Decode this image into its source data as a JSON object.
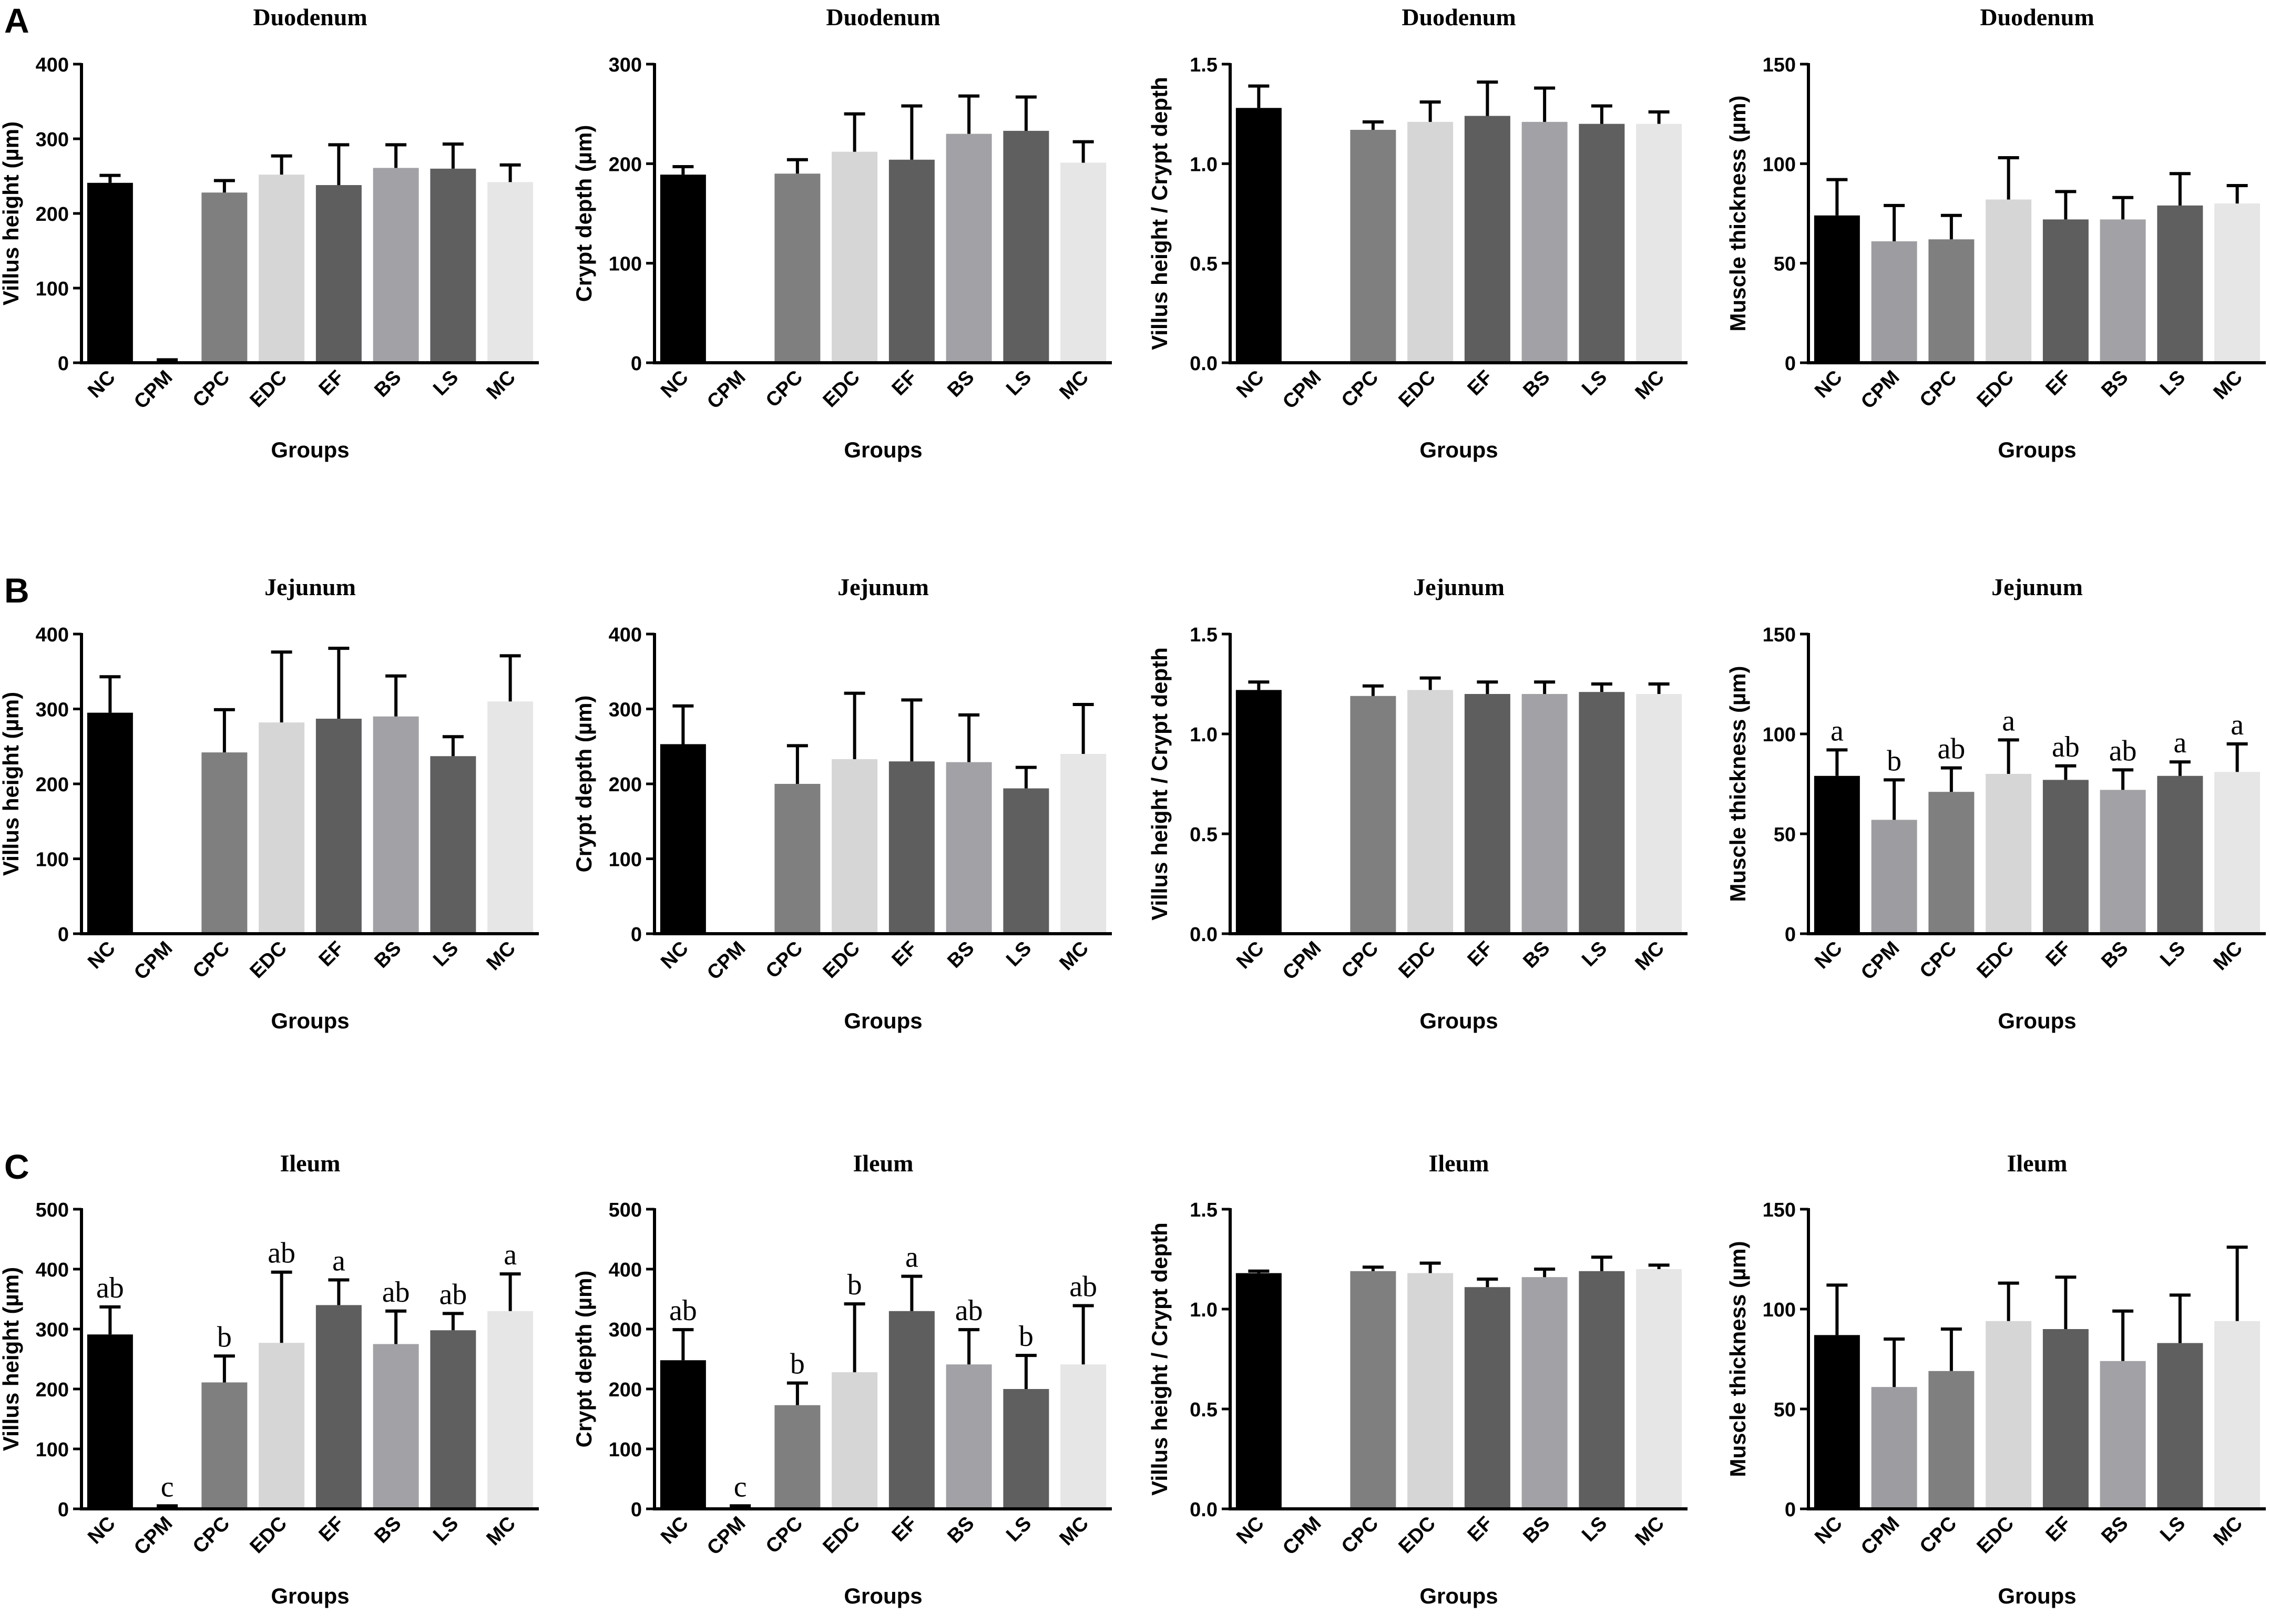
{
  "panel_letters": [
    "A",
    "B",
    "C"
  ],
  "chart_data": [
    {
      "type": "bar",
      "panel": "A",
      "title": "Duodenum",
      "xlabel": "Groups",
      "ylabel": "Villus height (µm)",
      "ylim": [
        0,
        400
      ],
      "yticks": [
        0,
        100,
        200,
        300,
        400
      ],
      "tick_labels": [
        "0",
        "100",
        "200",
        "300",
        "400"
      ],
      "categories": [
        "NC",
        "CPM",
        "CPC",
        "EDC",
        "EF",
        "BS",
        "LS",
        "MC"
      ],
      "colors": [
        "#000000",
        "#9d9da1",
        "#7f7f7f",
        "#d6d6d6",
        "#5e5e5e",
        "#a2a2a6",
        "#5f5f5f",
        "#e6e6e6"
      ],
      "values": [
        241,
        2,
        228,
        252,
        238,
        261,
        260,
        242
      ],
      "errors": [
        10,
        2,
        16,
        25,
        54,
        31,
        33,
        23
      ],
      "labels": []
    },
    {
      "type": "bar",
      "panel": "A",
      "title": "Duodenum",
      "xlabel": "Groups",
      "ylabel": "Crypt depth (µm)",
      "ylim": [
        0,
        300
      ],
      "yticks": [
        0,
        100,
        200,
        300
      ],
      "tick_labels": [
        "0",
        "100",
        "200",
        "300"
      ],
      "categories": [
        "NC",
        "CPM",
        "CPC",
        "EDC",
        "EF",
        "BS",
        "LS",
        "MC"
      ],
      "colors": [
        "#000000",
        "#9d9da1",
        "#7f7f7f",
        "#d6d6d6",
        "#5e5e5e",
        "#a2a2a6",
        "#5f5f5f",
        "#e6e6e6"
      ],
      "values": [
        189,
        1,
        190,
        212,
        204,
        230,
        233,
        201
      ],
      "errors": [
        8,
        0,
        14,
        38,
        54,
        38,
        34,
        21
      ],
      "labels": []
    },
    {
      "type": "bar",
      "panel": "A",
      "title": "Duodenum",
      "xlabel": "Groups",
      "ylabel": "Villus height / Crypt depth",
      "ylim": [
        0,
        1.5
      ],
      "yticks": [
        0,
        0.5,
        1.0,
        1.5
      ],
      "tick_labels": [
        "0.0",
        "0.5",
        "1.0",
        "1.5"
      ],
      "categories": [
        "NC",
        "CPM",
        "CPC",
        "EDC",
        "EF",
        "BS",
        "LS",
        "MC"
      ],
      "colors": [
        "#000000",
        "#9d9da1",
        "#7f7f7f",
        "#d6d6d6",
        "#5e5e5e",
        "#a2a2a6",
        "#5f5f5f",
        "#e6e6e6"
      ],
      "values": [
        1.28,
        0,
        1.17,
        1.21,
        1.24,
        1.21,
        1.2,
        1.2
      ],
      "errors": [
        0.11,
        0,
        0.04,
        0.1,
        0.17,
        0.17,
        0.09,
        0.06
      ],
      "labels": []
    },
    {
      "type": "bar",
      "panel": "A",
      "title": "Duodenum",
      "xlabel": "Groups",
      "ylabel": "Muscle thickness (µm)",
      "ylim": [
        0,
        150
      ],
      "yticks": [
        0,
        50,
        100,
        150
      ],
      "tick_labels": [
        "0",
        "50",
        "100",
        "150"
      ],
      "categories": [
        "NC",
        "CPM",
        "CPC",
        "EDC",
        "EF",
        "BS",
        "LS",
        "MC"
      ],
      "colors": [
        "#000000",
        "#9d9da1",
        "#7f7f7f",
        "#d6d6d6",
        "#5e5e5e",
        "#a2a2a6",
        "#5f5f5f",
        "#e6e6e6"
      ],
      "values": [
        74,
        61,
        62,
        82,
        72,
        72,
        79,
        80
      ],
      "errors": [
        18,
        18,
        12,
        21,
        14,
        11,
        16,
        9
      ],
      "labels": []
    },
    {
      "type": "bar",
      "panel": "B",
      "title": "Jejunum",
      "xlabel": "Groups",
      "ylabel": "Villus height (µm)",
      "ylim": [
        0,
        400
      ],
      "yticks": [
        0,
        100,
        200,
        300,
        400
      ],
      "tick_labels": [
        "0",
        "100",
        "200",
        "300",
        "400"
      ],
      "categories": [
        "NC",
        "CPM",
        "CPC",
        "EDC",
        "EF",
        "BS",
        "LS",
        "MC"
      ],
      "colors": [
        "#000000",
        "#9d9da1",
        "#7f7f7f",
        "#d6d6d6",
        "#5e5e5e",
        "#a2a2a6",
        "#5f5f5f",
        "#e6e6e6"
      ],
      "values": [
        295,
        1,
        242,
        282,
        287,
        290,
        237,
        310
      ],
      "errors": [
        48,
        0,
        57,
        94,
        94,
        54,
        26,
        61
      ],
      "labels": []
    },
    {
      "type": "bar",
      "panel": "B",
      "title": "Jejunum",
      "xlabel": "Groups",
      "ylabel": "Crypt depth (µm)",
      "ylim": [
        0,
        400
      ],
      "yticks": [
        0,
        100,
        200,
        300,
        400
      ],
      "tick_labels": [
        "0",
        "100",
        "200",
        "300",
        "400"
      ],
      "categories": [
        "NC",
        "CPM",
        "CPC",
        "EDC",
        "EF",
        "BS",
        "LS",
        "MC"
      ],
      "colors": [
        "#000000",
        "#9d9da1",
        "#7f7f7f",
        "#d6d6d6",
        "#5e5e5e",
        "#a2a2a6",
        "#5f5f5f",
        "#e6e6e6"
      ],
      "values": [
        253,
        1,
        200,
        233,
        230,
        229,
        194,
        240
      ],
      "errors": [
        51,
        0,
        51,
        88,
        82,
        63,
        28,
        66
      ],
      "labels": []
    },
    {
      "type": "bar",
      "panel": "B",
      "title": "Jejunum",
      "xlabel": "Groups",
      "ylabel": "Villus height / Crypt depth",
      "ylim": [
        0,
        1.5
      ],
      "yticks": [
        0,
        0.5,
        1.0,
        1.5
      ],
      "tick_labels": [
        "0.0",
        "0.5",
        "1.0",
        "1.5"
      ],
      "categories": [
        "NC",
        "CPM",
        "CPC",
        "EDC",
        "EF",
        "BS",
        "LS",
        "MC"
      ],
      "colors": [
        "#000000",
        "#9d9da1",
        "#7f7f7f",
        "#d6d6d6",
        "#5e5e5e",
        "#a2a2a6",
        "#5f5f5f",
        "#e6e6e6"
      ],
      "values": [
        1.22,
        0,
        1.19,
        1.22,
        1.2,
        1.2,
        1.21,
        1.2
      ],
      "errors": [
        0.04,
        0,
        0.05,
        0.06,
        0.06,
        0.06,
        0.04,
        0.05
      ],
      "labels": []
    },
    {
      "type": "bar",
      "panel": "B",
      "title": "Jejunum",
      "xlabel": "Groups",
      "ylabel": "Muscle thickness (µm)",
      "ylim": [
        0,
        150
      ],
      "yticks": [
        0,
        50,
        100,
        150
      ],
      "tick_labels": [
        "0",
        "50",
        "100",
        "150"
      ],
      "categories": [
        "NC",
        "CPM",
        "CPC",
        "EDC",
        "EF",
        "BS",
        "LS",
        "MC"
      ],
      "colors": [
        "#000000",
        "#9d9da1",
        "#7f7f7f",
        "#d6d6d6",
        "#5e5e5e",
        "#a2a2a6",
        "#5f5f5f",
        "#e6e6e6"
      ],
      "values": [
        79,
        57,
        71,
        80,
        77,
        72,
        79,
        81
      ],
      "errors": [
        13,
        20,
        12,
        17,
        7,
        10,
        7,
        14
      ],
      "labels": [
        "a",
        "b",
        "ab",
        "a",
        "ab",
        "ab",
        "a",
        "a"
      ]
    },
    {
      "type": "bar",
      "panel": "C",
      "title": "Ileum",
      "xlabel": "Groups",
      "ylabel": "Villus height (µm)",
      "ylim": [
        0,
        500
      ],
      "yticks": [
        0,
        100,
        200,
        300,
        400,
        500
      ],
      "tick_labels": [
        "0",
        "100",
        "200",
        "300",
        "400",
        "500"
      ],
      "categories": [
        "NC",
        "CPM",
        "CPC",
        "EDC",
        "EF",
        "BS",
        "LS",
        "MC"
      ],
      "colors": [
        "#000000",
        "#9d9da1",
        "#7f7f7f",
        "#d6d6d6",
        "#5e5e5e",
        "#a2a2a6",
        "#5f5f5f",
        "#e6e6e6"
      ],
      "values": [
        291,
        2,
        211,
        277,
        340,
        275,
        298,
        330
      ],
      "errors": [
        46,
        3,
        44,
        118,
        42,
        55,
        28,
        62
      ],
      "labels": [
        "ab",
        "c",
        "b",
        "ab",
        "a",
        "ab",
        "ab",
        "a"
      ]
    },
    {
      "type": "bar",
      "panel": "C",
      "title": "Ileum",
      "xlabel": "Groups",
      "ylabel": "Crypt depth (µm)",
      "ylim": [
        0,
        500
      ],
      "yticks": [
        0,
        100,
        200,
        300,
        400,
        500
      ],
      "tick_labels": [
        "0",
        "100",
        "200",
        "300",
        "400",
        "500"
      ],
      "categories": [
        "NC",
        "CPM",
        "CPC",
        "EDC",
        "EF",
        "BS",
        "LS",
        "MC"
      ],
      "colors": [
        "#000000",
        "#9d9da1",
        "#7f7f7f",
        "#d6d6d6",
        "#5e5e5e",
        "#a2a2a6",
        "#5f5f5f",
        "#e6e6e6"
      ],
      "values": [
        248,
        2,
        173,
        228,
        330,
        241,
        200,
        241
      ],
      "errors": [
        51,
        3,
        37,
        114,
        58,
        58,
        56,
        98
      ],
      "labels": [
        "ab",
        "c",
        "b",
        "b",
        "a",
        "ab",
        "b",
        "ab"
      ]
    },
    {
      "type": "bar",
      "panel": "C",
      "title": "Ileum",
      "xlabel": "Groups",
      "ylabel": "Villus height / Crypt depth",
      "ylim": [
        0,
        1.5
      ],
      "yticks": [
        0,
        0.5,
        1.0,
        1.5
      ],
      "tick_labels": [
        "0.0",
        "0.5",
        "1.0",
        "1.5"
      ],
      "categories": [
        "NC",
        "CPM",
        "CPC",
        "EDC",
        "EF",
        "BS",
        "LS",
        "MC"
      ],
      "colors": [
        "#000000",
        "#9d9da1",
        "#7f7f7f",
        "#d6d6d6",
        "#5e5e5e",
        "#a2a2a6",
        "#5f5f5f",
        "#e6e6e6"
      ],
      "values": [
        1.18,
        0,
        1.19,
        1.18,
        1.11,
        1.16,
        1.19,
        1.2
      ],
      "errors": [
        0.01,
        0,
        0.02,
        0.05,
        0.04,
        0.04,
        0.07,
        0.02
      ],
      "labels": []
    },
    {
      "type": "bar",
      "panel": "C",
      "title": "Ileum",
      "xlabel": "Groups",
      "ylabel": "Muscle thickness (µm)",
      "ylim": [
        0,
        150
      ],
      "yticks": [
        0,
        50,
        100,
        150
      ],
      "tick_labels": [
        "0",
        "50",
        "100",
        "150"
      ],
      "categories": [
        "NC",
        "CPM",
        "CPC",
        "EDC",
        "EF",
        "BS",
        "LS",
        "MC"
      ],
      "colors": [
        "#000000",
        "#9d9da1",
        "#7f7f7f",
        "#d6d6d6",
        "#5e5e5e",
        "#a2a2a6",
        "#5f5f5f",
        "#e6e6e6"
      ],
      "values": [
        87,
        61,
        69,
        94,
        90,
        74,
        83,
        94
      ],
      "errors": [
        25,
        24,
        21,
        19,
        26,
        25,
        24,
        37
      ],
      "labels": []
    }
  ]
}
